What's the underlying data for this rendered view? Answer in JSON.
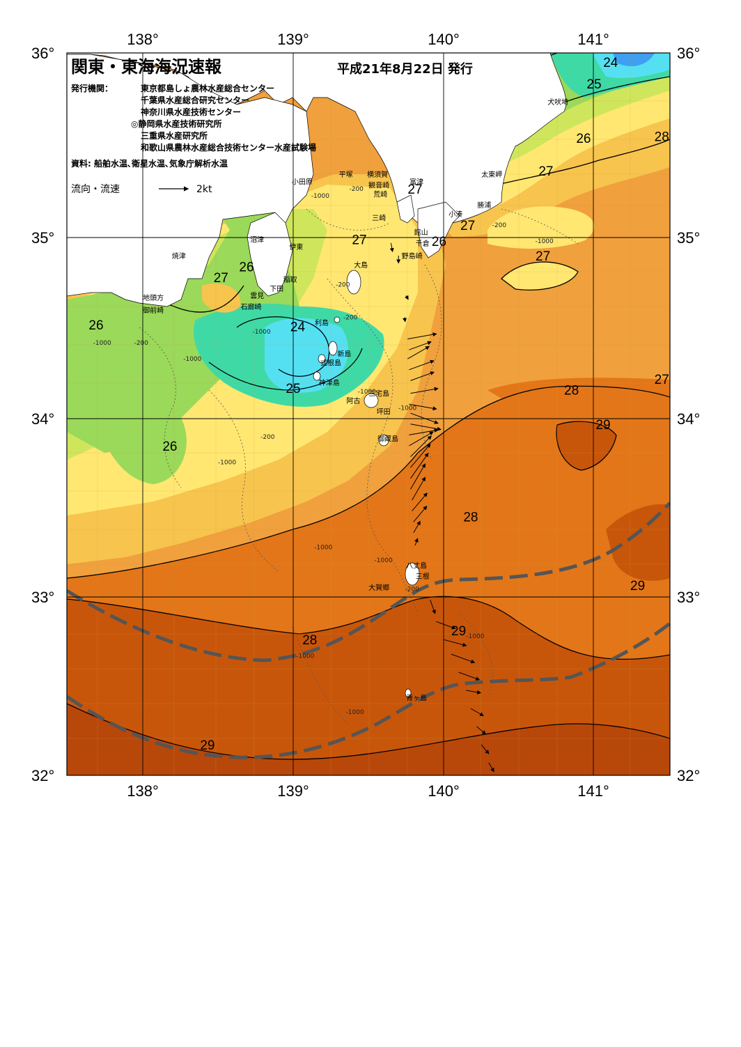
{
  "header": {
    "title": "関東・東海海況速報",
    "date": "平成21年8月22日 発行",
    "publisher_label": "発行機関：",
    "publishers": [
      "東京都島しょ農林水産総合センター",
      "千葉県水産総合研究センター",
      "神奈川県水産技術センター",
      "◎静岡県水産技術研究所",
      "三重県水産研究所",
      "和歌山県農林水産総合技術センター水産試験場"
    ],
    "source": "資料: 船舶水温､衛星水温､気象庁解析水温",
    "legend_label": "流向・流速",
    "legend_value": "2kt"
  },
  "axes": {
    "lon_labels": [
      "138°",
      "139°",
      "140°",
      "141°"
    ],
    "lat_labels": [
      "36°",
      "35°",
      "34°",
      "33°",
      "32°"
    ]
  },
  "colors": {
    "t23": "#3f9ff0",
    "t24": "#55e0f2",
    "t25": "#3fd9a6",
    "t26": "#9ad95a",
    "t265": "#cfe65c",
    "t27": "#ffe772",
    "t275": "#f7c44e",
    "t28": "#f0a03c",
    "t285": "#e37618",
    "t29": "#c8560a",
    "t295": "#b8470a",
    "land": "#ffffff",
    "kuroshio": "#555555"
  },
  "isotherm_labels": [
    {
      "text": "24",
      "lon": 141.11,
      "lat": 35.97
    },
    {
      "text": "25",
      "lon": 141.0,
      "lat": 35.85
    },
    {
      "text": "26",
      "lon": 140.93,
      "lat": 35.55
    },
    {
      "text": "28",
      "lon": 141.45,
      "lat": 35.56
    },
    {
      "text": "27",
      "lon": 140.68,
      "lat": 35.37
    },
    {
      "text": "27",
      "lon": 139.81,
      "lat": 35.27
    },
    {
      "text": "27",
      "lon": 140.16,
      "lat": 35.07
    },
    {
      "text": "27",
      "lon": 139.44,
      "lat": 34.99
    },
    {
      "text": "26",
      "lon": 139.97,
      "lat": 34.98
    },
    {
      "text": "27",
      "lon": 140.66,
      "lat": 34.9
    },
    {
      "text": "26",
      "lon": 138.69,
      "lat": 34.84
    },
    {
      "text": "27",
      "lon": 138.52,
      "lat": 34.78
    },
    {
      "text": "26",
      "lon": 137.69,
      "lat": 34.52
    },
    {
      "text": "24",
      "lon": 139.03,
      "lat": 34.51
    },
    {
      "text": "25",
      "lon": 139.0,
      "lat": 34.17
    },
    {
      "text": "28",
      "lon": 140.85,
      "lat": 34.16
    },
    {
      "text": "27",
      "lon": 141.45,
      "lat": 34.22
    },
    {
      "text": "29",
      "lon": 141.06,
      "lat": 33.97
    },
    {
      "text": "26",
      "lon": 138.18,
      "lat": 33.85
    },
    {
      "text": "28",
      "lon": 140.18,
      "lat": 33.46
    },
    {
      "text": "29",
      "lon": 141.29,
      "lat": 33.08
    },
    {
      "text": "29",
      "lon": 140.1,
      "lat": 32.83
    },
    {
      "text": "28",
      "lon": 139.11,
      "lat": 32.78
    },
    {
      "text": "29",
      "lon": 138.43,
      "lat": 32.2
    }
  ],
  "place_labels": [
    {
      "text": "犬吠埼",
      "lon": 140.76,
      "lat": 35.75
    },
    {
      "text": "太東岬",
      "lon": 140.32,
      "lat": 35.35
    },
    {
      "text": "勝浦",
      "lon": 140.27,
      "lat": 35.18
    },
    {
      "text": "小湊",
      "lon": 140.08,
      "lat": 35.13
    },
    {
      "text": "富津",
      "lon": 139.82,
      "lat": 35.31
    },
    {
      "text": "横須賀",
      "lon": 139.56,
      "lat": 35.35
    },
    {
      "text": "平塚",
      "lon": 139.35,
      "lat": 35.35
    },
    {
      "text": "観音崎",
      "lon": 139.57,
      "lat": 35.29
    },
    {
      "text": "荒崎",
      "lon": 139.58,
      "lat": 35.24
    },
    {
      "text": "小田原",
      "lon": 139.06,
      "lat": 35.31
    },
    {
      "text": "三崎",
      "lon": 139.57,
      "lat": 35.11
    },
    {
      "text": "館山",
      "lon": 139.85,
      "lat": 35.03
    },
    {
      "text": "千倉",
      "lon": 139.86,
      "lat": 34.97
    },
    {
      "text": "野島崎",
      "lon": 139.79,
      "lat": 34.9
    },
    {
      "text": "沼津",
      "lon": 138.76,
      "lat": 34.99
    },
    {
      "text": "伊東",
      "lon": 139.02,
      "lat": 34.95
    },
    {
      "text": "焼津",
      "lon": 138.24,
      "lat": 34.9
    },
    {
      "text": "大島",
      "lon": 139.45,
      "lat": 34.85
    },
    {
      "text": "稲取",
      "lon": 138.98,
      "lat": 34.77
    },
    {
      "text": "下田",
      "lon": 138.89,
      "lat": 34.72
    },
    {
      "text": "雲見",
      "lon": 138.76,
      "lat": 34.68
    },
    {
      "text": "石廊崎",
      "lon": 138.72,
      "lat": 34.62
    },
    {
      "text": "地頭方",
      "lon": 138.07,
      "lat": 34.67
    },
    {
      "text": "御前崎",
      "lon": 138.07,
      "lat": 34.6
    },
    {
      "text": "利島",
      "lon": 139.19,
      "lat": 34.53
    },
    {
      "text": "新島",
      "lon": 139.34,
      "lat": 34.36
    },
    {
      "text": "式根島",
      "lon": 139.25,
      "lat": 34.31
    },
    {
      "text": "神津島",
      "lon": 139.24,
      "lat": 34.2
    },
    {
      "text": "三宅島",
      "lon": 139.57,
      "lat": 34.14
    },
    {
      "text": "阿古",
      "lon": 139.4,
      "lat": 34.1
    },
    {
      "text": "坪田",
      "lon": 139.6,
      "lat": 34.04
    },
    {
      "text": "御蔵島",
      "lon": 139.63,
      "lat": 33.89
    },
    {
      "text": "八丈島",
      "lon": 139.82,
      "lat": 33.19
    },
    {
      "text": "三根",
      "lon": 139.86,
      "lat": 33.13
    },
    {
      "text": "大賀郷",
      "lon": 139.57,
      "lat": 33.07
    },
    {
      "text": "青ヶ島",
      "lon": 139.82,
      "lat": 32.46
    }
  ],
  "depth_labels": [
    {
      "text": "-1000",
      "lon": 139.18,
      "lat": 35.23
    },
    {
      "text": "-200",
      "lon": 139.42,
      "lat": 35.27
    },
    {
      "text": "-1000",
      "lon": 140.67,
      "lat": 34.98
    },
    {
      "text": "-200",
      "lon": 140.37,
      "lat": 35.07
    },
    {
      "text": "-200",
      "lon": 139.33,
      "lat": 34.74
    },
    {
      "text": "-200",
      "lon": 139.38,
      "lat": 34.56
    },
    {
      "text": "-1000",
      "lon": 138.79,
      "lat": 34.48
    },
    {
      "text": "-1000",
      "lon": 138.33,
      "lat": 34.33
    },
    {
      "text": "-1000",
      "lon": 137.73,
      "lat": 34.42
    },
    {
      "text": "-200",
      "lon": 137.99,
      "lat": 34.42
    },
    {
      "text": "-200",
      "lon": 138.83,
      "lat": 33.9
    },
    {
      "text": "-1000",
      "lon": 138.56,
      "lat": 33.76
    },
    {
      "text": "-1000",
      "lon": 139.49,
      "lat": 34.15
    },
    {
      "text": "-1000",
      "lon": 139.76,
      "lat": 34.06
    },
    {
      "text": "-1000",
      "lon": 139.2,
      "lat": 33.29
    },
    {
      "text": "-1000",
      "lon": 139.6,
      "lat": 33.22
    },
    {
      "text": "-1000",
      "lon": 140.21,
      "lat": 32.8
    },
    {
      "text": "-1000",
      "lon": 139.08,
      "lat": 32.69
    },
    {
      "text": "-1000",
      "lon": 139.41,
      "lat": 32.38
    },
    {
      "text": "-200",
      "lon": 139.79,
      "lat": 33.06
    }
  ],
  "current_vectors": [
    {
      "lon": 139.65,
      "lat": 34.97,
      "dir": 170,
      "spd": 0.6
    },
    {
      "lon": 139.7,
      "lat": 34.9,
      "dir": 180,
      "spd": 0.5
    },
    {
      "lon": 139.75,
      "lat": 34.68,
      "dir": 150,
      "spd": 0.3
    },
    {
      "lon": 139.74,
      "lat": 34.56,
      "dir": 170,
      "spd": 0.3
    },
    {
      "lon": 139.76,
      "lat": 34.44,
      "dir": 80,
      "spd": 2.0
    },
    {
      "lon": 139.77,
      "lat": 34.38,
      "dir": 70,
      "spd": 1.6
    },
    {
      "lon": 139.76,
      "lat": 34.33,
      "dir": 60,
      "spd": 1.7
    },
    {
      "lon": 139.77,
      "lat": 34.27,
      "dir": 70,
      "spd": 1.8
    },
    {
      "lon": 139.78,
      "lat": 34.21,
      "dir": 70,
      "spd": 1.7
    },
    {
      "lon": 139.78,
      "lat": 34.14,
      "dir": 80,
      "spd": 1.9
    },
    {
      "lon": 139.77,
      "lat": 34.08,
      "dir": 100,
      "spd": 1.9
    },
    {
      "lon": 139.78,
      "lat": 34.03,
      "dir": 110,
      "spd": 2.0
    },
    {
      "lon": 139.78,
      "lat": 33.97,
      "dir": 100,
      "spd": 2.1
    },
    {
      "lon": 139.77,
      "lat": 33.91,
      "dir": 80,
      "spd": 2.0
    },
    {
      "lon": 139.77,
      "lat": 33.85,
      "dir": 60,
      "spd": 1.9
    },
    {
      "lon": 139.78,
      "lat": 33.79,
      "dir": 45,
      "spd": 2.0
    },
    {
      "lon": 139.78,
      "lat": 33.73,
      "dir": 40,
      "spd": 2.1
    },
    {
      "lon": 139.78,
      "lat": 33.67,
      "dir": 35,
      "spd": 2.1
    },
    {
      "lon": 139.78,
      "lat": 33.61,
      "dir": 30,
      "spd": 2.0
    },
    {
      "lon": 139.79,
      "lat": 33.55,
      "dir": 30,
      "spd": 1.8
    },
    {
      "lon": 139.79,
      "lat": 33.49,
      "dir": 40,
      "spd": 1.6
    },
    {
      "lon": 139.8,
      "lat": 33.43,
      "dir": 40,
      "spd": 1.4
    },
    {
      "lon": 139.8,
      "lat": 33.37,
      "dir": 30,
      "spd": 0.9
    },
    {
      "lon": 139.81,
      "lat": 33.3,
      "dir": 20,
      "spd": 0.5
    },
    {
      "lon": 139.91,
      "lat": 33.0,
      "dir": 160,
      "spd": 1.0
    },
    {
      "lon": 139.95,
      "lat": 32.88,
      "dir": 110,
      "spd": 1.4
    },
    {
      "lon": 140.0,
      "lat": 32.78,
      "dir": 105,
      "spd": 1.6
    },
    {
      "lon": 140.05,
      "lat": 32.7,
      "dir": 110,
      "spd": 1.7
    },
    {
      "lon": 140.1,
      "lat": 32.6,
      "dir": 110,
      "spd": 1.5
    },
    {
      "lon": 140.15,
      "lat": 32.5,
      "dir": 100,
      "spd": 1.0
    },
    {
      "lon": 140.18,
      "lat": 32.4,
      "dir": 120,
      "spd": 1.0
    },
    {
      "lon": 140.22,
      "lat": 32.3,
      "dir": 130,
      "spd": 0.8
    },
    {
      "lon": 140.25,
      "lat": 32.2,
      "dir": 140,
      "spd": 0.8
    },
    {
      "lon": 140.3,
      "lat": 32.1,
      "dir": 150,
      "spd": 0.7
    }
  ]
}
